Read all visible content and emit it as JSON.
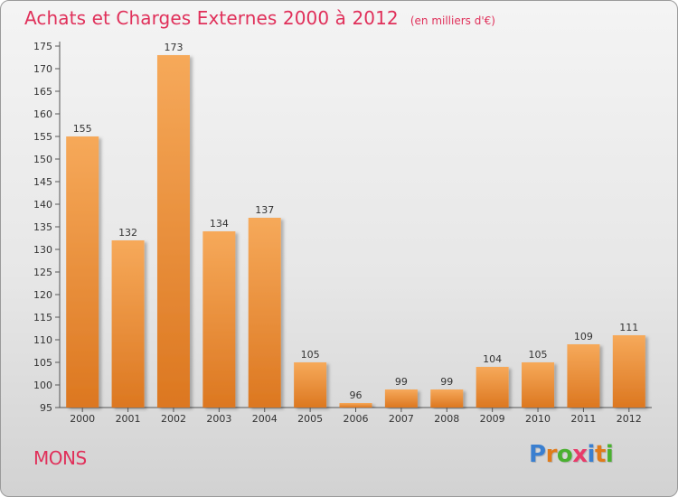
{
  "header": {
    "title": "Achats et Charges Externes 2000 à 2012",
    "subtitle": "(en milliers d'€)"
  },
  "footer": {
    "city": "MONS",
    "brand": "Proxiti",
    "brand_letters": [
      {
        "char": "P",
        "color": "#3a7fd0"
      },
      {
        "char": "r",
        "color": "#e07b1a"
      },
      {
        "char": "o",
        "color": "#4ab030"
      },
      {
        "char": "x",
        "color": "#e83b6a"
      },
      {
        "char": "i",
        "color": "#3a7fd0"
      },
      {
        "char": "t",
        "color": "#e07b1a"
      },
      {
        "char": "i",
        "color": "#4ab030"
      }
    ]
  },
  "colors": {
    "title": "#e0305a",
    "bar_top": "#f6a95a",
    "bar_bottom": "#dc7720",
    "axis": "#555555"
  },
  "chart_data": {
    "type": "bar",
    "categories": [
      "2000",
      "2001",
      "2002",
      "2003",
      "2004",
      "2005",
      "2006",
      "2007",
      "2008",
      "2009",
      "2010",
      "2011",
      "2012"
    ],
    "values": [
      155,
      132,
      173,
      134,
      137,
      105,
      96,
      99,
      99,
      104,
      105,
      109,
      111
    ],
    "ylim": [
      95,
      175
    ],
    "yticks": [
      95,
      100,
      105,
      110,
      115,
      120,
      125,
      130,
      135,
      140,
      145,
      150,
      155,
      160,
      165,
      170,
      175
    ],
    "xlabel": "",
    "ylabel": "",
    "grid": false,
    "legend": "none"
  }
}
